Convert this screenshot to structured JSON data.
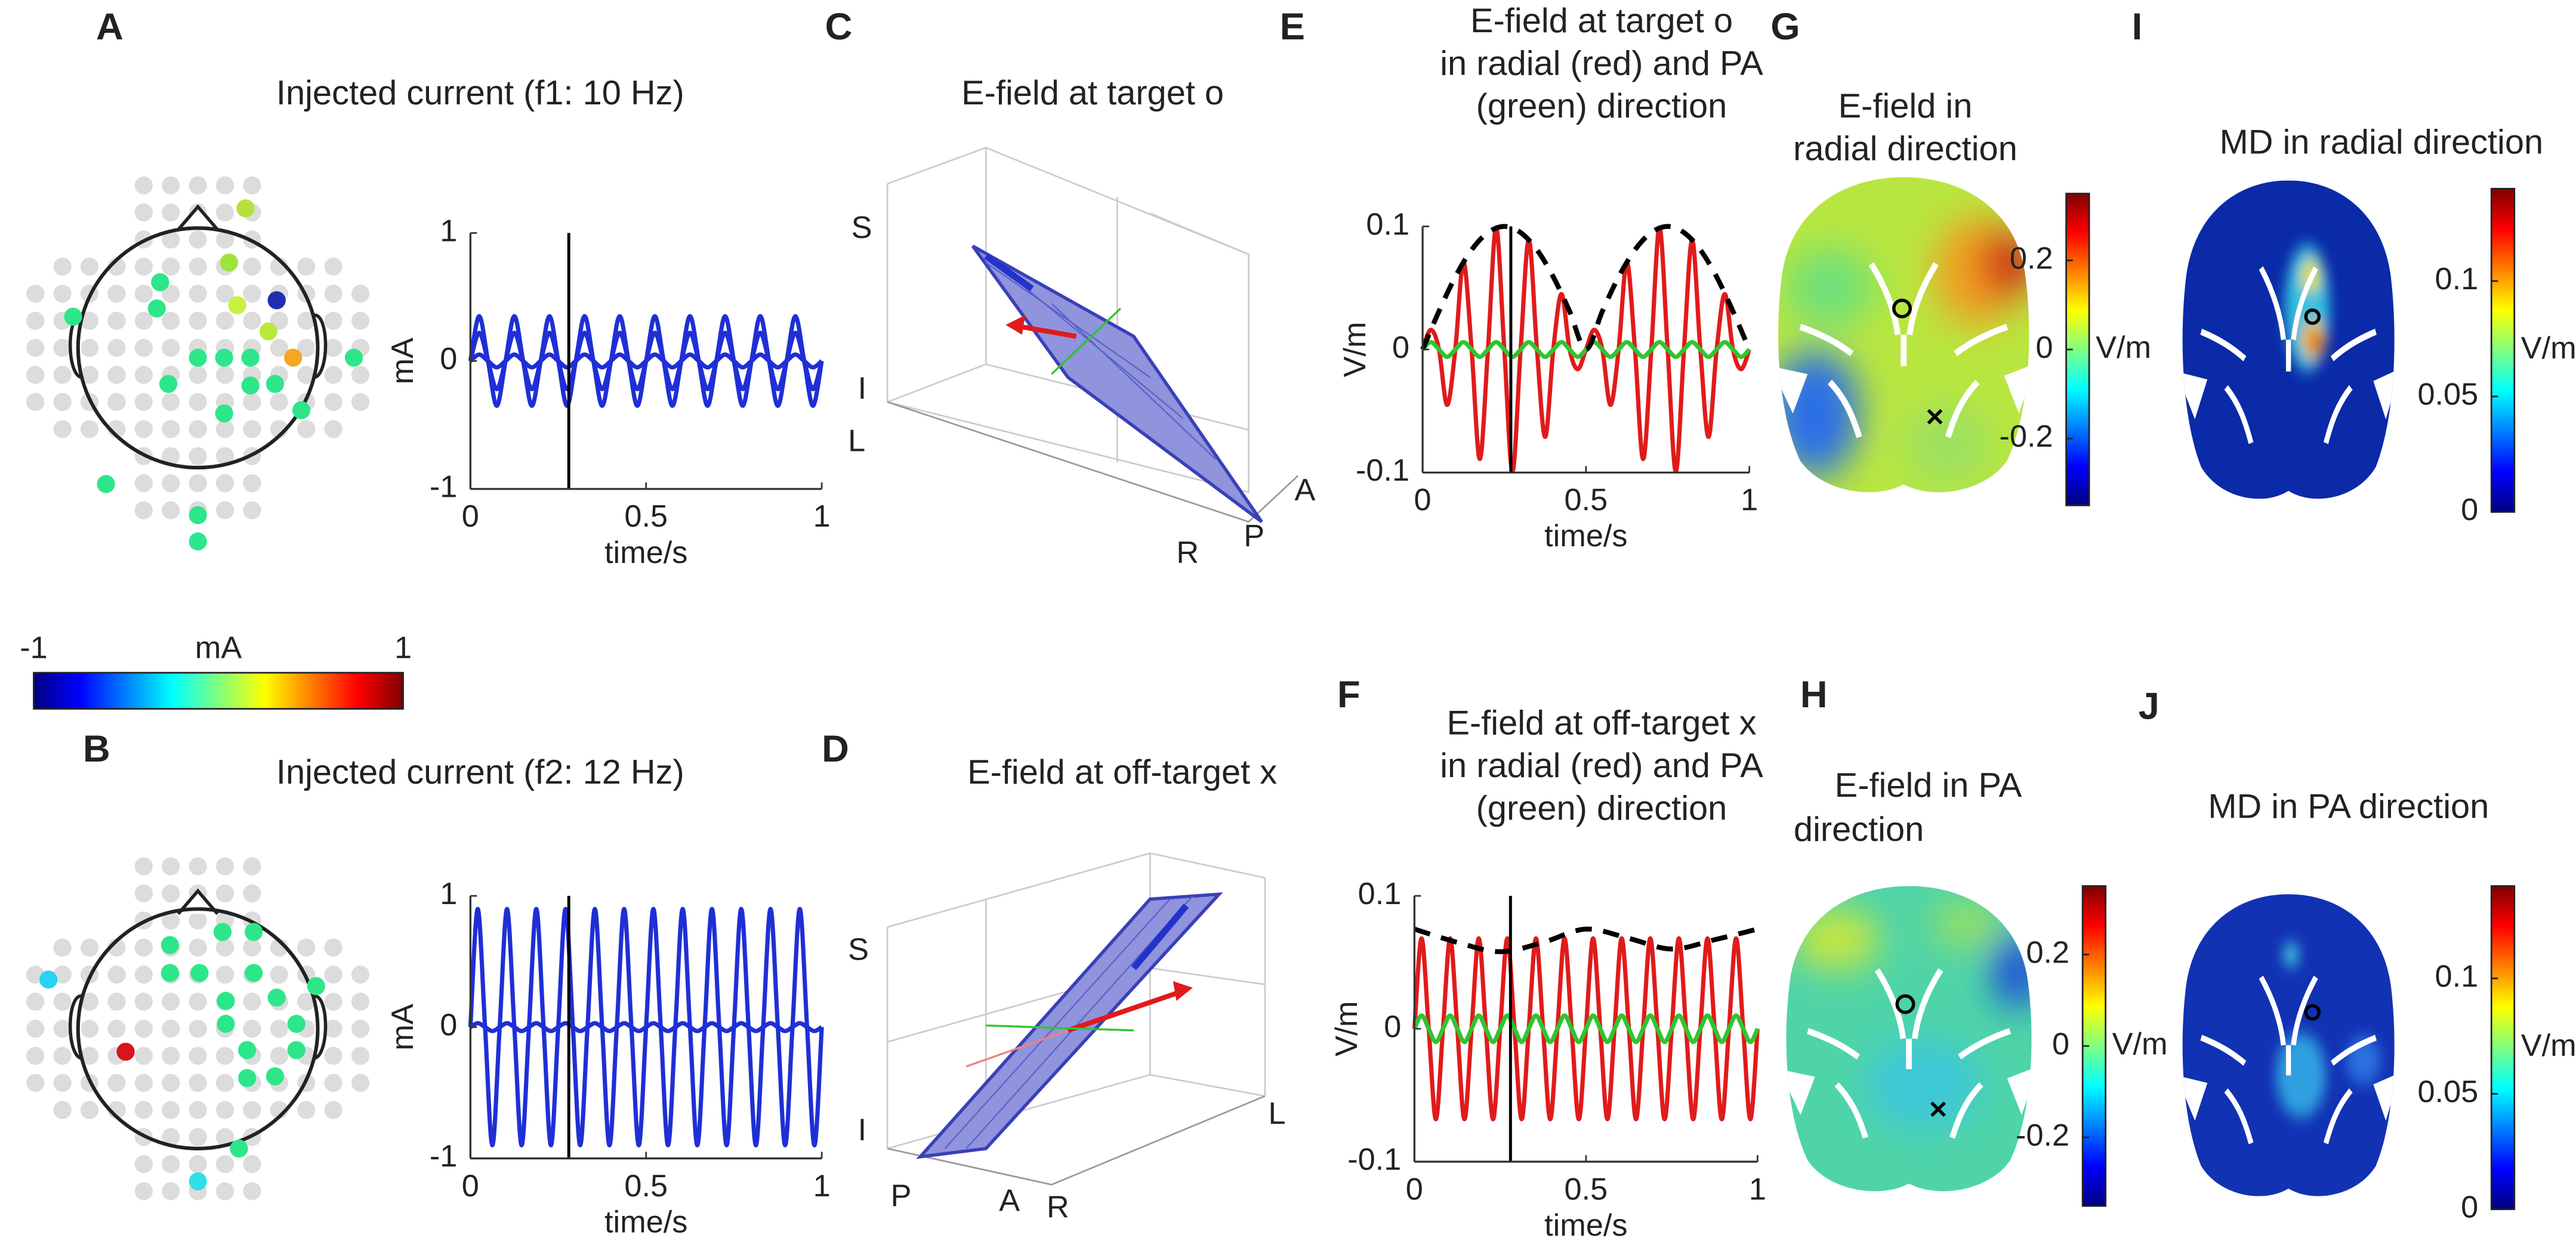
{
  "panel_labels": [
    "A",
    "B",
    "C",
    "D",
    "E",
    "F",
    "G",
    "H",
    "I",
    "J"
  ],
  "current_colorbar": {
    "lim": [
      -1,
      1
    ],
    "ticks": [
      -1,
      1
    ],
    "unit": "mA"
  },
  "panel_C": {
    "title": "E-field at target o",
    "axis_labels": [
      "S",
      "I",
      "L",
      "A",
      "P",
      "R"
    ]
  },
  "panel_D": {
    "title": "E-field at off-target x",
    "axis_labels": [
      "S",
      "I",
      "P",
      "A",
      "R",
      "L"
    ]
  },
  "panel_G": {
    "title": [
      "E-field in",
      "radial direction"
    ]
  },
  "panel_H": {
    "title": [
      "E-field in PA",
      "direction"
    ]
  },
  "panel_I": {
    "title": "MD in radial direction"
  },
  "panel_J": {
    "title": "MD in PA direction"
  },
  "colorbars": [
    {
      "lim": [
        -0.35,
        0.35
      ],
      "ticks": [
        0.2,
        0,
        -0.2
      ],
      "unit": "V/m"
    },
    {
      "lim": [
        -0.35,
        0.35
      ],
      "ticks": [
        0.2,
        0,
        -0.2
      ],
      "unit": "V/m"
    },
    {
      "lim": [
        0,
        0.14
      ],
      "ticks": [
        0.1,
        0.05,
        0
      ],
      "unit": "V/m"
    },
    {
      "lim": [
        0,
        0.14
      ],
      "ticks": [
        0.1,
        0.05,
        0
      ],
      "unit": "V/m"
    }
  ],
  "chart_data": [
    {
      "type": "line",
      "title": "Injected current (f1: 10 Hz)",
      "xlabel": "time/s",
      "ylabel": "mA",
      "xlim": [
        0,
        1
      ],
      "xticks": [
        0,
        0.5,
        1
      ],
      "ylim": [
        -1,
        1
      ],
      "yticks": [
        -1,
        0,
        1
      ],
      "marker_x": 0.28,
      "x": [
        0,
        0.025,
        0.05,
        0.075,
        0.1,
        0.125,
        0.15,
        0.175,
        0.2,
        0.225,
        0.25,
        0.275,
        0.3,
        0.325,
        0.35,
        0.375,
        0.4,
        0.425,
        0.45,
        0.475,
        0.5,
        0.525,
        0.55,
        0.575,
        0.6,
        0.625,
        0.65,
        0.675,
        0.7,
        0.725,
        0.75,
        0.775,
        0.8,
        0.825,
        0.85,
        0.875,
        0.9,
        0.925,
        0.95,
        0.975,
        1
      ],
      "series": [
        {
          "color": "#1f2fd6",
          "values": [
            0,
            0.35,
            0,
            -0.35,
            0,
            0.35,
            0,
            -0.35,
            0,
            0.35,
            0,
            -0.35,
            0,
            0.35,
            0,
            -0.35,
            0,
            0.35,
            0,
            -0.35,
            0,
            0.35,
            0,
            -0.35,
            0,
            0.35,
            0,
            -0.35,
            0,
            0.35,
            0,
            -0.35,
            0,
            0.35,
            0,
            -0.35,
            0,
            0.35,
            0,
            -0.35,
            0
          ]
        },
        {
          "color": "#1f2fd6",
          "values": [
            0,
            0.22,
            0,
            -0.22,
            0,
            0.22,
            0,
            -0.22,
            0,
            0.22,
            0,
            -0.22,
            0,
            0.22,
            0,
            -0.22,
            0,
            0.22,
            0,
            -0.22,
            0,
            0.22,
            0,
            -0.22,
            0,
            0.22,
            0,
            -0.22,
            0,
            0.22,
            0,
            -0.22,
            0,
            0.22,
            0,
            -0.22,
            0,
            0.22,
            0,
            -0.22,
            0
          ]
        },
        {
          "color": "#1f2fd6",
          "values": [
            0,
            0.05,
            0,
            -0.05,
            0,
            0.05,
            0,
            -0.05,
            0,
            0.05,
            0,
            -0.05,
            0,
            0.05,
            0,
            -0.05,
            0,
            0.05,
            0,
            -0.05,
            0,
            0.05,
            0,
            -0.05,
            0,
            0.05,
            0,
            -0.05,
            0,
            0.05,
            0,
            -0.05,
            0,
            0.05,
            0,
            -0.05,
            0,
            0.05,
            0,
            -0.05,
            0
          ]
        }
      ]
    },
    {
      "type": "line",
      "title": "Injected current (f2: 12 Hz)",
      "xlabel": "time/s",
      "ylabel": "mA",
      "xlim": [
        0,
        1
      ],
      "xticks": [
        0,
        0.5,
        1
      ],
      "ylim": [
        -1,
        1
      ],
      "yticks": [
        -1,
        0,
        1
      ],
      "marker_x": 0.28,
      "x": [
        0,
        0.0208,
        0.0417,
        0.0625,
        0.0833,
        0.1042,
        0.125,
        0.1458,
        0.1667,
        0.1875,
        0.2083,
        0.2292,
        0.25,
        0.2708,
        0.2917,
        0.3125,
        0.3333,
        0.3542,
        0.375,
        0.3958,
        0.4167,
        0.4375,
        0.4583,
        0.4792,
        0.5,
        0.5208,
        0.5417,
        0.5625,
        0.5833,
        0.6042,
        0.625,
        0.6458,
        0.6667,
        0.6875,
        0.7083,
        0.7292,
        0.75,
        0.7708,
        0.7917,
        0.8125,
        0.8333,
        0.8542,
        0.875,
        0.8958,
        0.9167,
        0.9375,
        0.9583,
        0.9792,
        1
      ],
      "series": [
        {
          "color": "#1f2fd6",
          "values": [
            0,
            0.9,
            0,
            -0.9,
            0,
            0.9,
            0,
            -0.9,
            0,
            0.9,
            0,
            -0.9,
            0,
            0.9,
            0,
            -0.9,
            0,
            0.9,
            0,
            -0.9,
            0,
            0.9,
            0,
            -0.9,
            0,
            0.9,
            0,
            -0.9,
            0,
            0.9,
            0,
            -0.9,
            0,
            0.9,
            0,
            -0.9,
            0,
            0.9,
            0,
            -0.9,
            0,
            0.9,
            0,
            -0.9,
            0,
            0.9,
            0,
            -0.9,
            0
          ]
        },
        {
          "color": "#1f2fd6",
          "values": [
            0,
            0.03,
            0,
            -0.03,
            0,
            0.03,
            0,
            -0.03,
            0,
            0.03,
            0,
            -0.03,
            0,
            0.03,
            0,
            -0.03,
            0,
            0.03,
            0,
            -0.03,
            0,
            0.03,
            0,
            -0.03,
            0,
            0.03,
            0,
            -0.03,
            0,
            0.03,
            0,
            -0.03,
            0,
            0.03,
            0,
            -0.03,
            0,
            0.03,
            0,
            -0.03,
            0,
            0.03,
            0,
            -0.03,
            0,
            0.03,
            0,
            -0.03,
            0
          ]
        }
      ]
    },
    {
      "type": "line",
      "title": [
        "E-field at target o",
        "in radial (red) and PA",
        "(green) direction"
      ],
      "xlabel": "time/s",
      "ylabel": "V/m",
      "xlim": [
        0,
        1
      ],
      "xticks": [
        0,
        0.5,
        1
      ],
      "ylim": [
        -0.1,
        0.1
      ],
      "yticks": [
        -0.1,
        0,
        0.1
      ],
      "marker_x": 0.27,
      "x": [
        0,
        0.025,
        0.05,
        0.075,
        0.1,
        0.125,
        0.15,
        0.175,
        0.2,
        0.225,
        0.25,
        0.275,
        0.3,
        0.325,
        0.35,
        0.375,
        0.4,
        0.425,
        0.45,
        0.475,
        0.5,
        0.525,
        0.55,
        0.575,
        0.6,
        0.625,
        0.65,
        0.675,
        0.7,
        0.725,
        0.75,
        0.775,
        0.8,
        0.825,
        0.85,
        0.875,
        0.9,
        0.925,
        0.95,
        0.975,
        1
      ],
      "series": [
        {
          "color": "#e01b1b",
          "values": [
            0,
            0.016,
            0,
            -0.045,
            0,
            0.071,
            0,
            -0.089,
            0,
            0.099,
            0,
            -0.099,
            0,
            0.089,
            0,
            -0.071,
            0,
            0.045,
            0,
            -0.016,
            0,
            0.016,
            0,
            -0.045,
            0,
            0.071,
            0,
            -0.089,
            0,
            0.099,
            0,
            -0.099,
            0,
            0.089,
            0,
            -0.071,
            0,
            0.045,
            0,
            -0.016,
            0
          ]
        },
        {
          "color": "#2fc52f",
          "values": [
            0,
            0.006,
            0,
            -0.006,
            0,
            0.006,
            0,
            -0.006,
            0,
            0.006,
            0,
            -0.006,
            0,
            0.006,
            0,
            -0.006,
            0,
            0.006,
            0,
            -0.006,
            0,
            0.006,
            0,
            -0.006,
            0,
            0.006,
            0,
            -0.006,
            0,
            0.006,
            0,
            -0.006,
            0,
            0.006,
            0,
            -0.006,
            0,
            0.006,
            0,
            -0.006,
            0
          ]
        },
        {
          "color": "#000000",
          "dashed": true,
          "x": [
            0,
            0.05,
            0.1,
            0.15,
            0.2,
            0.25,
            0.3,
            0.35,
            0.4,
            0.45,
            0.5,
            0.55,
            0.6,
            0.65,
            0.7,
            0.75,
            0.8,
            0.85,
            0.9,
            0.95,
            1
          ],
          "values": [
            0,
            0.031,
            0.059,
            0.081,
            0.095,
            0.1,
            0.095,
            0.081,
            0.059,
            0.031,
            0,
            0.031,
            0.059,
            0.081,
            0.095,
            0.1,
            0.095,
            0.081,
            0.059,
            0.031,
            0
          ]
        }
      ]
    },
    {
      "type": "line",
      "title": [
        "E-field at off-target x",
        "in radial (red) and PA",
        "(green) direction"
      ],
      "xlabel": "time/s",
      "ylabel": "V/m",
      "xlim": [
        0,
        1
      ],
      "xticks": [
        0,
        0.5,
        1
      ],
      "ylim": [
        -0.1,
        0.1
      ],
      "yticks": [
        -0.1,
        0,
        0.1
      ],
      "marker_x": 0.28,
      "x": [
        0,
        0.0208,
        0.0417,
        0.0625,
        0.0833,
        0.1042,
        0.125,
        0.1458,
        0.1667,
        0.1875,
        0.2083,
        0.2292,
        0.25,
        0.2708,
        0.2917,
        0.3125,
        0.3333,
        0.3542,
        0.375,
        0.3958,
        0.4167,
        0.4375,
        0.4583,
        0.4792,
        0.5,
        0.5208,
        0.5417,
        0.5625,
        0.5833,
        0.6042,
        0.625,
        0.6458,
        0.6667,
        0.6875,
        0.7083,
        0.7292,
        0.75,
        0.7708,
        0.7917,
        0.8125,
        0.8333,
        0.8542,
        0.875,
        0.8958,
        0.9167,
        0.9375,
        0.9583,
        0.9792,
        1
      ],
      "series": [
        {
          "color": "#e01b1b",
          "values": [
            0,
            0.068,
            0,
            -0.068,
            0,
            0.068,
            0,
            -0.068,
            0,
            0.068,
            0,
            -0.068,
            0,
            0.068,
            0,
            -0.068,
            0,
            0.068,
            0,
            -0.068,
            0,
            0.068,
            0,
            -0.068,
            0,
            0.068,
            0,
            -0.068,
            0,
            0.068,
            0,
            -0.068,
            0,
            0.068,
            0,
            -0.068,
            0,
            0.068,
            0,
            -0.068,
            0,
            0.068,
            0,
            -0.068,
            0,
            0.068,
            0,
            -0.068,
            0
          ]
        },
        {
          "color": "#2fc52f",
          "values": [
            0,
            0.01,
            0,
            -0.01,
            0,
            0.01,
            0,
            -0.01,
            0,
            0.01,
            0,
            -0.01,
            0,
            0.01,
            0,
            -0.01,
            0,
            0.01,
            0,
            -0.01,
            0,
            0.01,
            0,
            -0.01,
            0,
            0.01,
            0,
            -0.01,
            0,
            0.01,
            0,
            -0.01,
            0,
            0.01,
            0,
            -0.01,
            0,
            0.01,
            0,
            -0.01,
            0,
            0.01,
            0,
            -0.01,
            0,
            0.01,
            0,
            -0.01,
            0
          ]
        },
        {
          "color": "#000000",
          "dashed": true,
          "x": [
            0,
            0.125,
            0.25,
            0.375,
            0.5,
            0.625,
            0.75,
            0.875,
            1
          ],
          "values": [
            0.075,
            0.065,
            0.058,
            0.065,
            0.075,
            0.068,
            0.06,
            0.067,
            0.075
          ]
        }
      ]
    }
  ]
}
